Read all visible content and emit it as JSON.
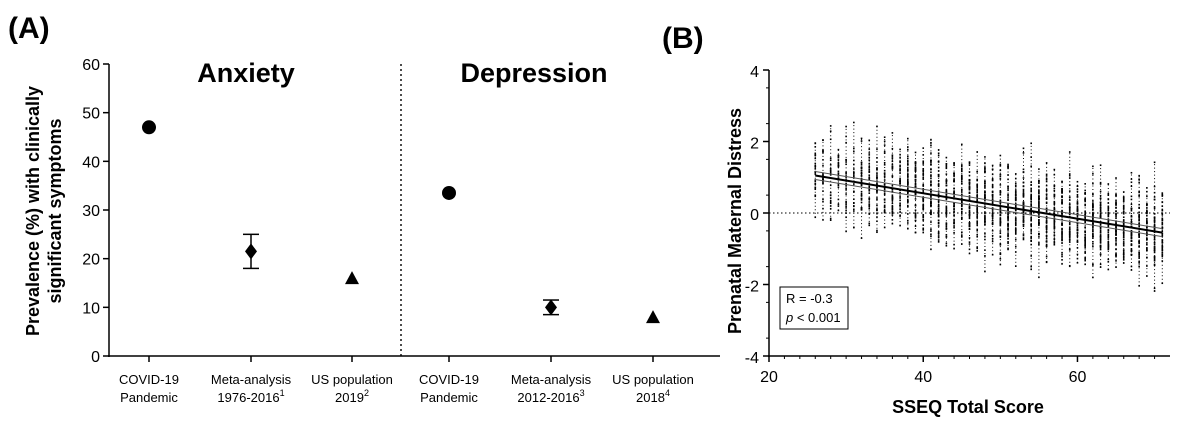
{
  "chart_data": [
    {
      "panel": "(A)",
      "type": "scatter",
      "ylabel_line1": "Prevalence (%) with clinically",
      "ylabel_line2": "significant symptoms",
      "ylim": [
        0,
        60
      ],
      "yticks": [
        0,
        10,
        20,
        30,
        40,
        50,
        60
      ],
      "groups": [
        {
          "title": "Anxiety",
          "categories": [
            {
              "line1": "COVID-19",
              "line2": "Pandemic",
              "sup": ""
            },
            {
              "line1": "Meta-analysis",
              "line2": "1976-2016",
              "sup": "1"
            },
            {
              "line1": "US population",
              "line2": "2019",
              "sup": "2"
            }
          ],
          "points": [
            {
              "value": 47,
              "marker": "circle"
            },
            {
              "value": 21.5,
              "low": 18,
              "high": 25,
              "marker": "diamond"
            },
            {
              "value": 16,
              "marker": "triangle"
            }
          ]
        },
        {
          "title": "Depression",
          "categories": [
            {
              "line1": "COVID-19",
              "line2": "Pandemic",
              "sup": ""
            },
            {
              "line1": "Meta-analysis",
              "line2": "2012-2016",
              "sup": "3"
            },
            {
              "line1": "US population",
              "line2": "2018",
              "sup": "4"
            }
          ],
          "points": [
            {
              "value": 33.5,
              "marker": "circle"
            },
            {
              "value": 10,
              "low": 8.5,
              "high": 11.5,
              "marker": "diamond"
            },
            {
              "value": 8,
              "marker": "triangle"
            }
          ]
        }
      ]
    },
    {
      "panel": "(B)",
      "type": "scatter",
      "xlabel": "SSEQ Total Score",
      "ylabel": "Prenatal Maternal Distress",
      "xlim": [
        20,
        72
      ],
      "ylim": [
        -4,
        4
      ],
      "xticks": [
        20,
        40,
        60
      ],
      "yticks": [
        -4,
        -2,
        0,
        2,
        4
      ],
      "x_range": [
        26,
        71
      ],
      "regression": {
        "x": [
          26,
          71
        ],
        "y": [
          1.05,
          -0.55
        ]
      },
      "reference_line_y": 0,
      "stats": {
        "r_text": "R = -0.3",
        "p_symbol": "p",
        "p_rest": " < 0.001"
      }
    }
  ]
}
